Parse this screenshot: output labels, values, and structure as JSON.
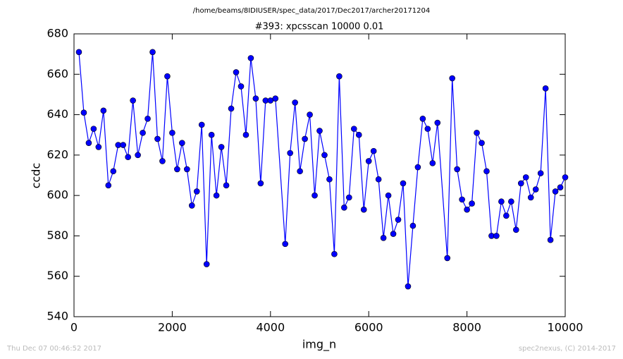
{
  "chart_data": {
    "type": "line",
    "suptitle": "/home/beams/8IDIUSER/spec_data/2017/Dec2017/archer20171204",
    "title": "#393: xpcsscan 10000 0.01",
    "x_label": "img_n",
    "y_label": "ccdc",
    "footer_left": "Thu Dec 07 00:46:52 2017",
    "footer_right": "spec2nexus, (C) 2014-2017",
    "x": [
      100,
      200,
      300,
      400,
      500,
      600,
      700,
      800,
      900,
      1000,
      1100,
      1200,
      1300,
      1400,
      1500,
      1600,
      1700,
      1800,
      1900,
      2000,
      2100,
      2200,
      2300,
      2400,
      2500,
      2600,
      2700,
      2800,
      2900,
      3000,
      3100,
      3200,
      3300,
      3400,
      3500,
      3600,
      3700,
      3800,
      3900,
      4000,
      4100,
      4300,
      4400,
      4500,
      4600,
      4700,
      4800,
      4900,
      5000,
      5100,
      5200,
      5300,
      5400,
      5500,
      5600,
      5700,
      5800,
      5900,
      6000,
      6100,
      6200,
      6300,
      6400,
      6500,
      6600,
      6700,
      6800,
      6900,
      7000,
      7100,
      7200,
      7300,
      7400,
      7600,
      7700,
      7800,
      7900,
      8000,
      8100,
      8200,
      8300,
      8400,
      8500,
      8600,
      8700,
      8800,
      8900,
      9000,
      9100,
      9200,
      9300,
      9400,
      9500,
      9600,
      9700,
      9800,
      9900,
      10000
    ],
    "series": [
      {
        "name": "ccdc",
        "color": "#0000ff",
        "marker_color": "#0000ff",
        "values": [
          671,
          641,
          626,
          633,
          624,
          642,
          605,
          612,
          625,
          625,
          619,
          647,
          620,
          631,
          638,
          671,
          628,
          617,
          659,
          631,
          613,
          626,
          613,
          595,
          602,
          635,
          566,
          630,
          600,
          624,
          605,
          643,
          661,
          654,
          630,
          668,
          648,
          606,
          647,
          647,
          648,
          576,
          621,
          646,
          612,
          628,
          640,
          600,
          632,
          620,
          608,
          571,
          659,
          594,
          599,
          633,
          630,
          593,
          617,
          622,
          608,
          579,
          600,
          581,
          588,
          606,
          555,
          585,
          614,
          638,
          633,
          616,
          636,
          569,
          658,
          613,
          598,
          593,
          596,
          631,
          626,
          612,
          580,
          580,
          597,
          590,
          597,
          583,
          606,
          609,
          599,
          603,
          611,
          653,
          578,
          602,
          604,
          609
        ]
      }
    ],
    "xlim": [
      0,
      10000
    ],
    "xticks": [
      0,
      2000,
      4000,
      6000,
      8000,
      10000
    ],
    "ylim": [
      540,
      680
    ],
    "yticks": [
      540,
      560,
      580,
      600,
      620,
      640,
      660,
      680
    ],
    "grid": false
  }
}
